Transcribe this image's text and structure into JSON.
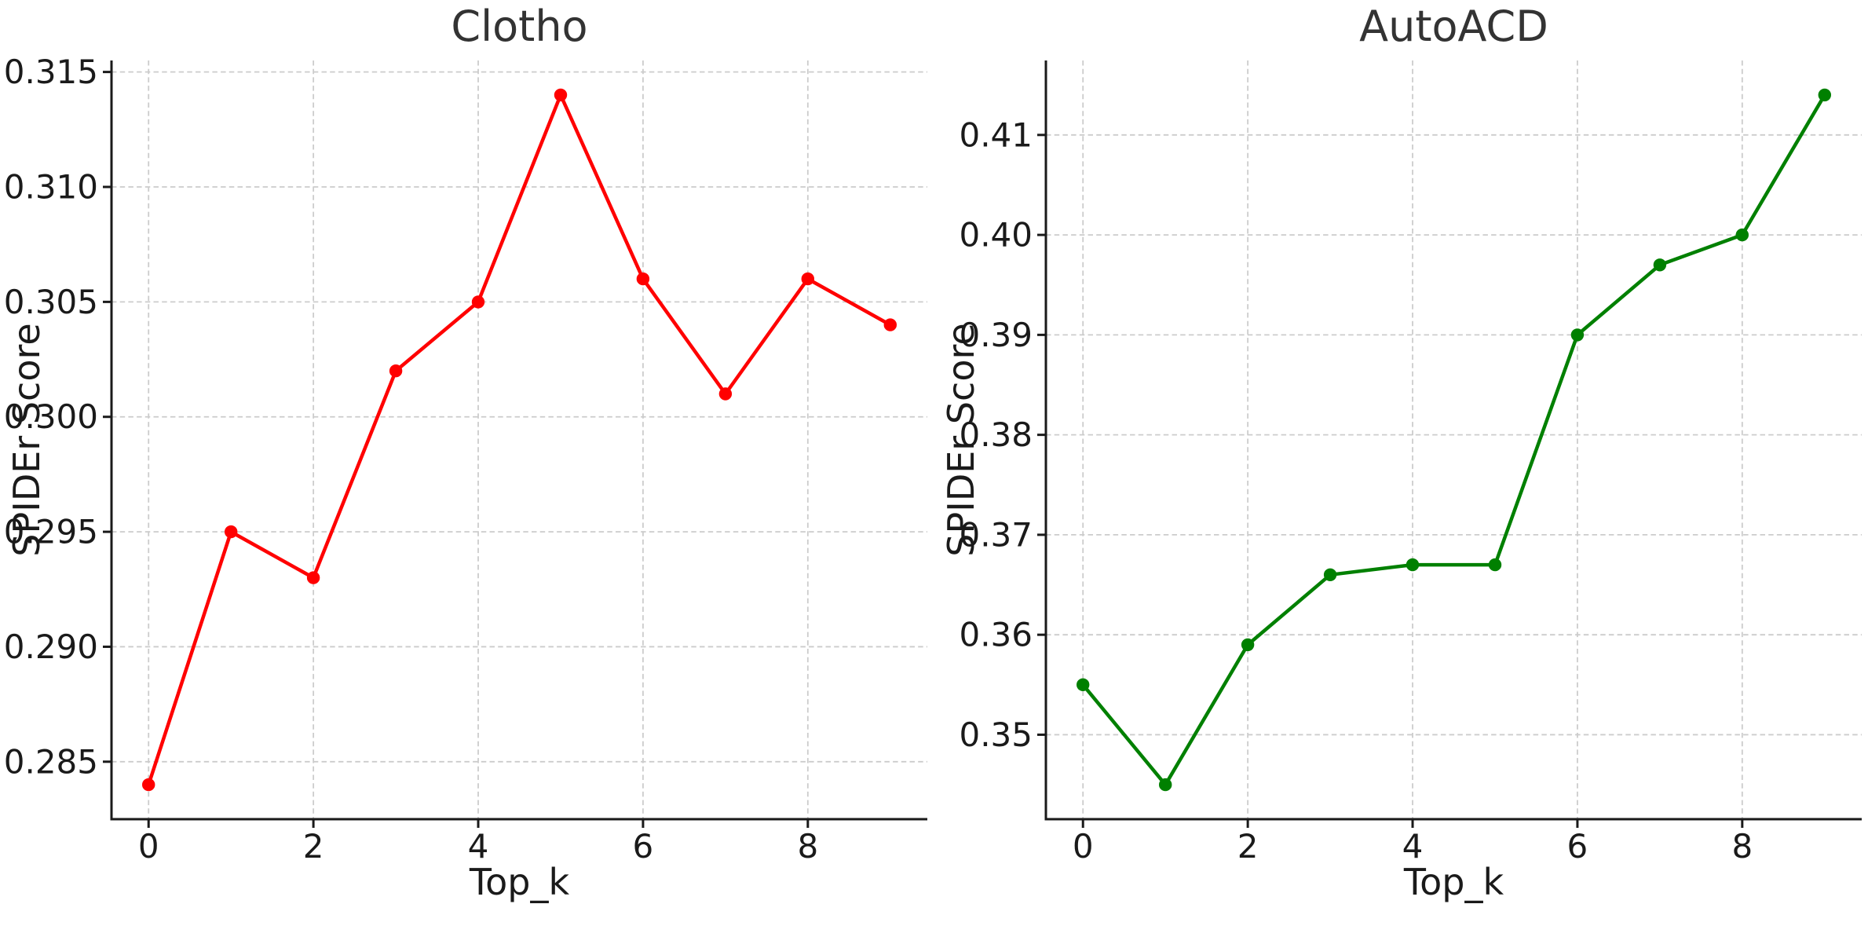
{
  "figure": {
    "background": "#ffffff"
  },
  "chart_data": [
    {
      "type": "line",
      "title": "Clotho",
      "xlabel": "Top_k",
      "ylabel": "SPIDEr Score",
      "series_color": "#ff0000",
      "marker": "o",
      "x": [
        0,
        1,
        2,
        3,
        4,
        5,
        6,
        7,
        8,
        9
      ],
      "values": [
        0.284,
        0.295,
        0.293,
        0.302,
        0.305,
        0.314,
        0.306,
        0.301,
        0.306,
        0.304
      ],
      "xlim": [
        -0.45,
        9.45
      ],
      "ylim": [
        0.2825,
        0.3155
      ],
      "xticks": [
        0,
        2,
        4,
        6,
        8
      ],
      "xtick_labels": [
        "0",
        "2",
        "4",
        "6",
        "8"
      ],
      "yticks": [
        0.285,
        0.29,
        0.295,
        0.3,
        0.305,
        0.31,
        0.315
      ],
      "ytick_labels": [
        "0.285",
        "0.290",
        "0.295",
        "0.300",
        "0.305",
        "0.310",
        "0.315"
      ],
      "grid": true,
      "legend": "none"
    },
    {
      "type": "line",
      "title": "AutoACD",
      "xlabel": "Top_k",
      "ylabel": "SPIDEr Score",
      "series_color": "#008000",
      "marker": "o",
      "x": [
        0,
        1,
        2,
        3,
        4,
        5,
        6,
        7,
        8,
        9
      ],
      "values": [
        0.355,
        0.345,
        0.359,
        0.366,
        0.367,
        0.367,
        0.39,
        0.397,
        0.4,
        0.414
      ],
      "xlim": [
        -0.45,
        9.45
      ],
      "ylim": [
        0.34155,
        0.41745
      ],
      "xticks": [
        0,
        2,
        4,
        6,
        8
      ],
      "xtick_labels": [
        "0",
        "2",
        "4",
        "6",
        "8"
      ],
      "yticks": [
        0.35,
        0.36,
        0.37,
        0.38,
        0.39,
        0.4,
        0.41
      ],
      "ytick_labels": [
        "0.35",
        "0.36",
        "0.37",
        "0.38",
        "0.39",
        "0.40",
        "0.41"
      ],
      "grid": true,
      "legend": "none"
    }
  ],
  "styles": {
    "grid_color": "#cccccc",
    "axis_color": "#1a1a1a",
    "tick_label_color": "#1a1a1a",
    "title_color": "#333333"
  }
}
